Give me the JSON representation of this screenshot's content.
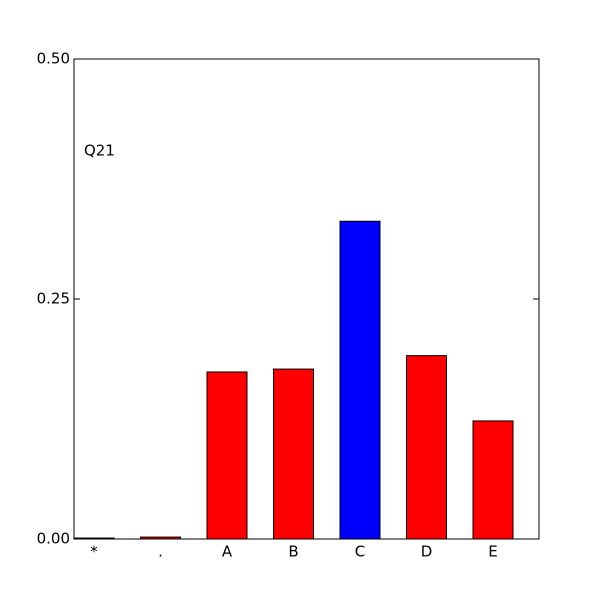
{
  "chart_data": {
    "type": "bar",
    "annotation": "Q21",
    "categories": [
      "*",
      ".",
      "A",
      "B",
      "C",
      "D",
      "E"
    ],
    "values": [
      0.001,
      0.002,
      0.174,
      0.177,
      0.331,
      0.191,
      0.123
    ],
    "colors": [
      "#ff0000",
      "#ff0000",
      "#ff0000",
      "#ff0000",
      "#0000ff",
      "#ff0000",
      "#ff0000"
    ],
    "ylim": [
      0,
      0.5
    ],
    "yticks": [
      {
        "value": 0,
        "label": "0.00"
      },
      {
        "value": 0.25,
        "label": "0.25"
      },
      {
        "value": 0.5,
        "label": "0.50"
      }
    ],
    "grid": false
  }
}
